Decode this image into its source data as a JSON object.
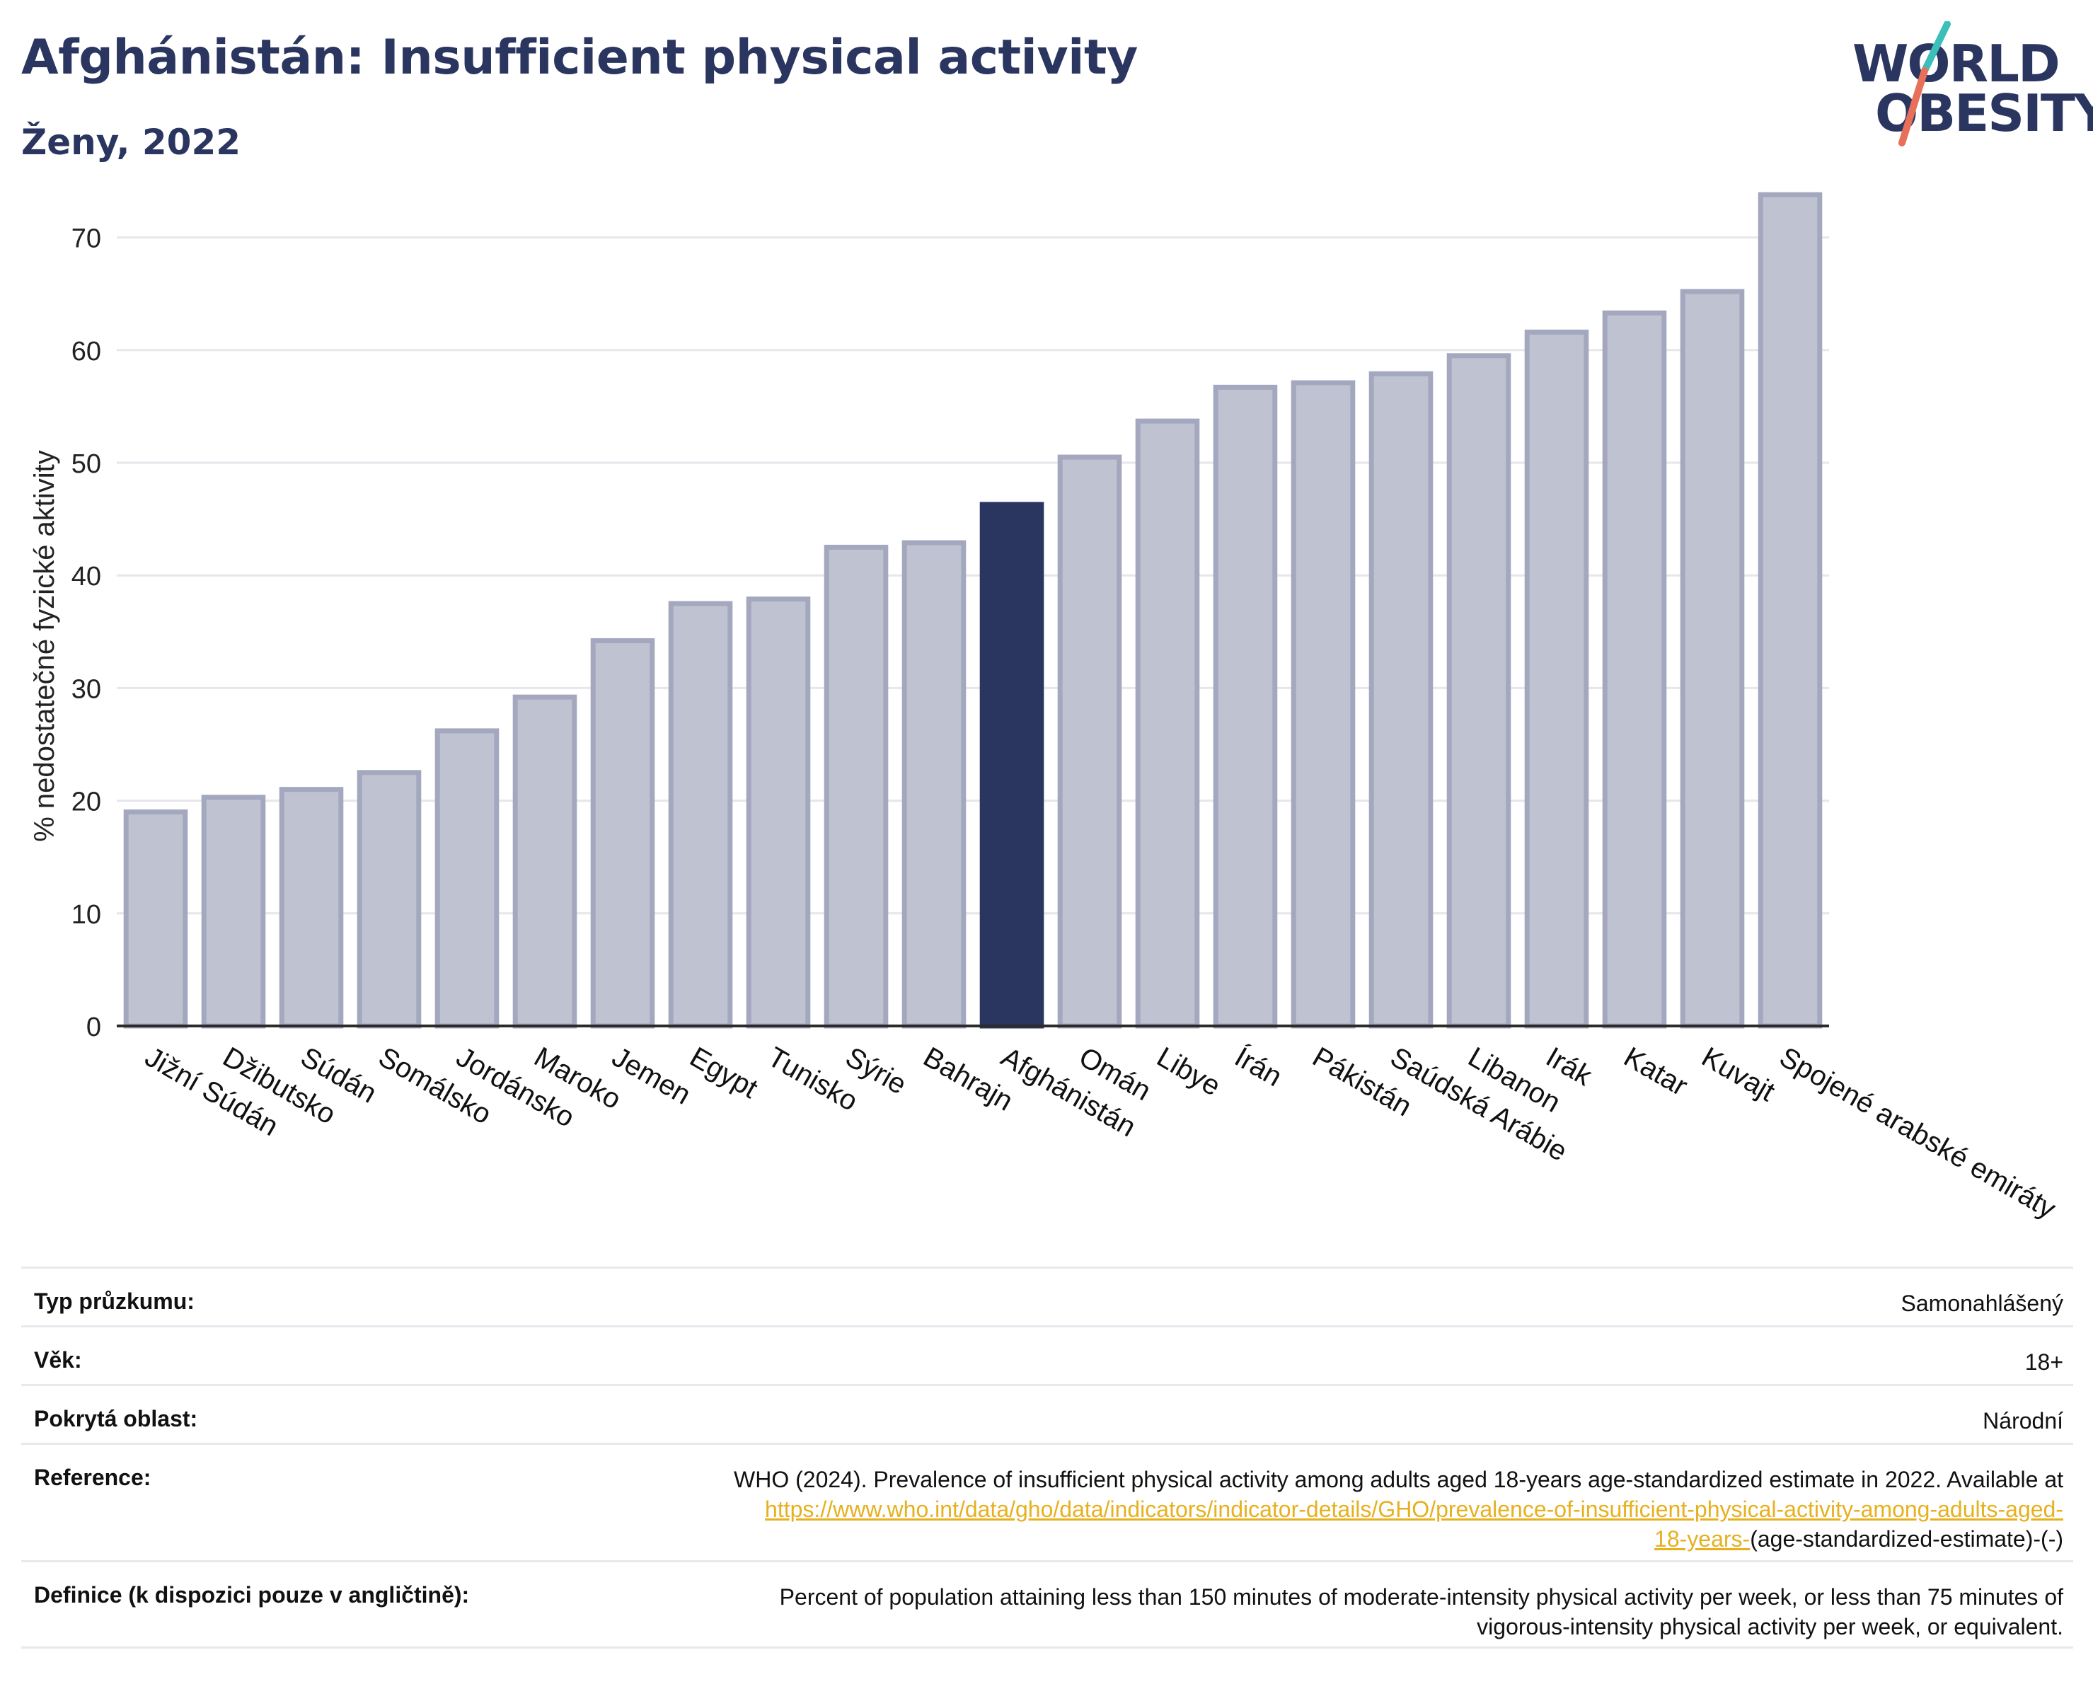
{
  "header": {
    "title": "Afghánistán: Insufficient physical activity",
    "subtitle": "Ženy, 2022"
  },
  "logo": {
    "line1": "WORLD",
    "line2": "OBESITY",
    "colors": {
      "text": "#2a3660",
      "slash_top": "#3bbfb8",
      "slash_bottom": "#e8705a"
    }
  },
  "colors": {
    "bar": "#bfc2d0",
    "bar_stroke": "#a4a8bf",
    "highlight": "#2a3660",
    "grid": "#e6e6ec",
    "axis": "#2b2b2b"
  },
  "chart_data": {
    "type": "bar",
    "title": "",
    "xlabel": "",
    "ylabel": "% nedostatečné fyzické aktivity",
    "ylim": [
      0,
      75
    ],
    "yticks": [
      0,
      10,
      20,
      30,
      40,
      50,
      60,
      70
    ],
    "grid": true,
    "highlight": "Afghánistán",
    "categories": [
      "Jižní Súdán",
      "Džibutsko",
      "Súdán",
      "Somálsko",
      "Jordánsko",
      "Maroko",
      "Jemen",
      "Egypt",
      "Tunisko",
      "Sýrie",
      "Bahrajn",
      "Afghánistán",
      "Omán",
      "Libye",
      "Írán",
      "Pákistán",
      "Saúdská Arábie",
      "Libanon",
      "Irák",
      "Katar",
      "Kuvajt",
      "Spojené arabské emiráty"
    ],
    "values": [
      19.0,
      20.3,
      21.0,
      22.5,
      26.2,
      29.2,
      34.2,
      37.5,
      37.9,
      42.5,
      42.9,
      46.3,
      50.5,
      53.7,
      56.7,
      57.1,
      57.9,
      59.5,
      61.6,
      63.3,
      65.2,
      73.8
    ]
  },
  "info": {
    "survey_label": "Typ průzkumu:",
    "survey_value": "Samonahlášený",
    "age_label": "Věk:",
    "age_value": "18+",
    "coverage_label": "Pokrytá oblast:",
    "coverage_value": "Národní",
    "reference_label": "Reference:",
    "reference_text": "WHO (2024). Prevalence of insufficient physical activity among adults aged 18-years age-standardized estimate in 2022. Available at",
    "reference_link_1": "https://www.who.int/data/gho/data/indicators/indicator-details/GHO/prevalence-of-insufficient-physical-activity-among-adults-aged-",
    "reference_link_2": "18-years-",
    "reference_suffix": "(age-standardized-estimate)-(-)",
    "definition_label": "Definice (k dispozici pouze v angličtině):",
    "definition_line1": "Percent of population attaining less than 150 minutes of moderate-intensity physical activity per week, or less than 75 minutes of",
    "definition_line2": "vigorous-intensity physical activity per week, or equivalent."
  }
}
